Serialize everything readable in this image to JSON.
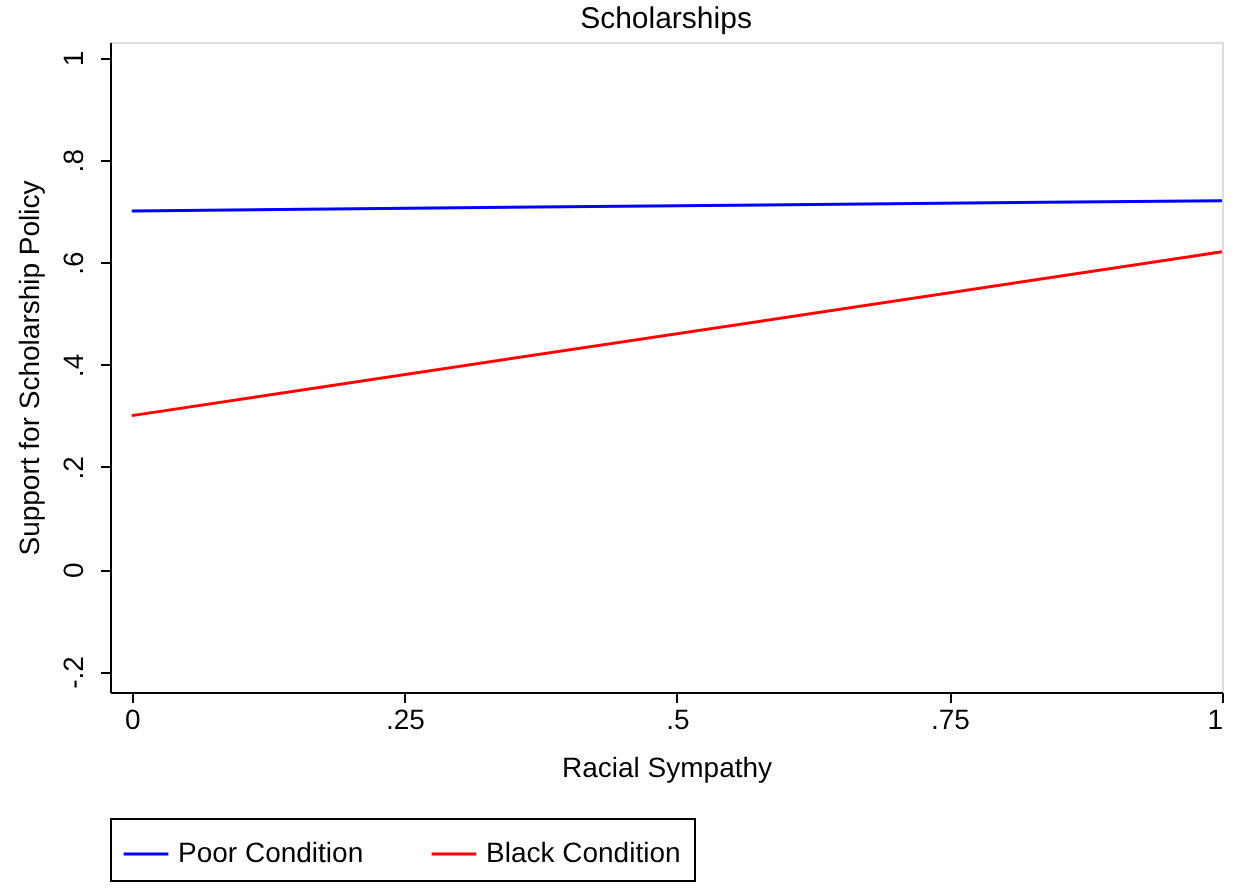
{
  "chart_data": {
    "type": "line",
    "title": "Scholarships",
    "xlabel": "Racial Sympathy",
    "ylabel": "Support for Scholarship Policy",
    "x": [
      0,
      1
    ],
    "series": [
      {
        "name": "Poor Condition",
        "color": "#0000ff",
        "values": [
          0.7,
          0.72
        ]
      },
      {
        "name": "Black Condition",
        "color": "#ff0000",
        "values": [
          0.3,
          0.62
        ]
      }
    ],
    "xlim": [
      -0.02,
      1
    ],
    "ylim": [
      -0.24,
      1.03
    ],
    "xticks": [
      0,
      {
        "value": 0.25,
        "label": ".25"
      },
      {
        "value": 0.5,
        "label": ".5"
      },
      {
        "value": 0.75,
        "label": ".75"
      },
      1
    ],
    "yticks": [
      {
        "value": -0.2,
        "label": "-.2"
      },
      0,
      {
        "value": 0.2,
        "label": ".2"
      },
      {
        "value": 0.4,
        "label": ".4"
      },
      {
        "value": 0.6,
        "label": ".6"
      },
      {
        "value": 0.8,
        "label": ".8"
      },
      1
    ],
    "grid": false,
    "legend": "bottom",
    "marker": "none",
    "line_style": "solid"
  }
}
